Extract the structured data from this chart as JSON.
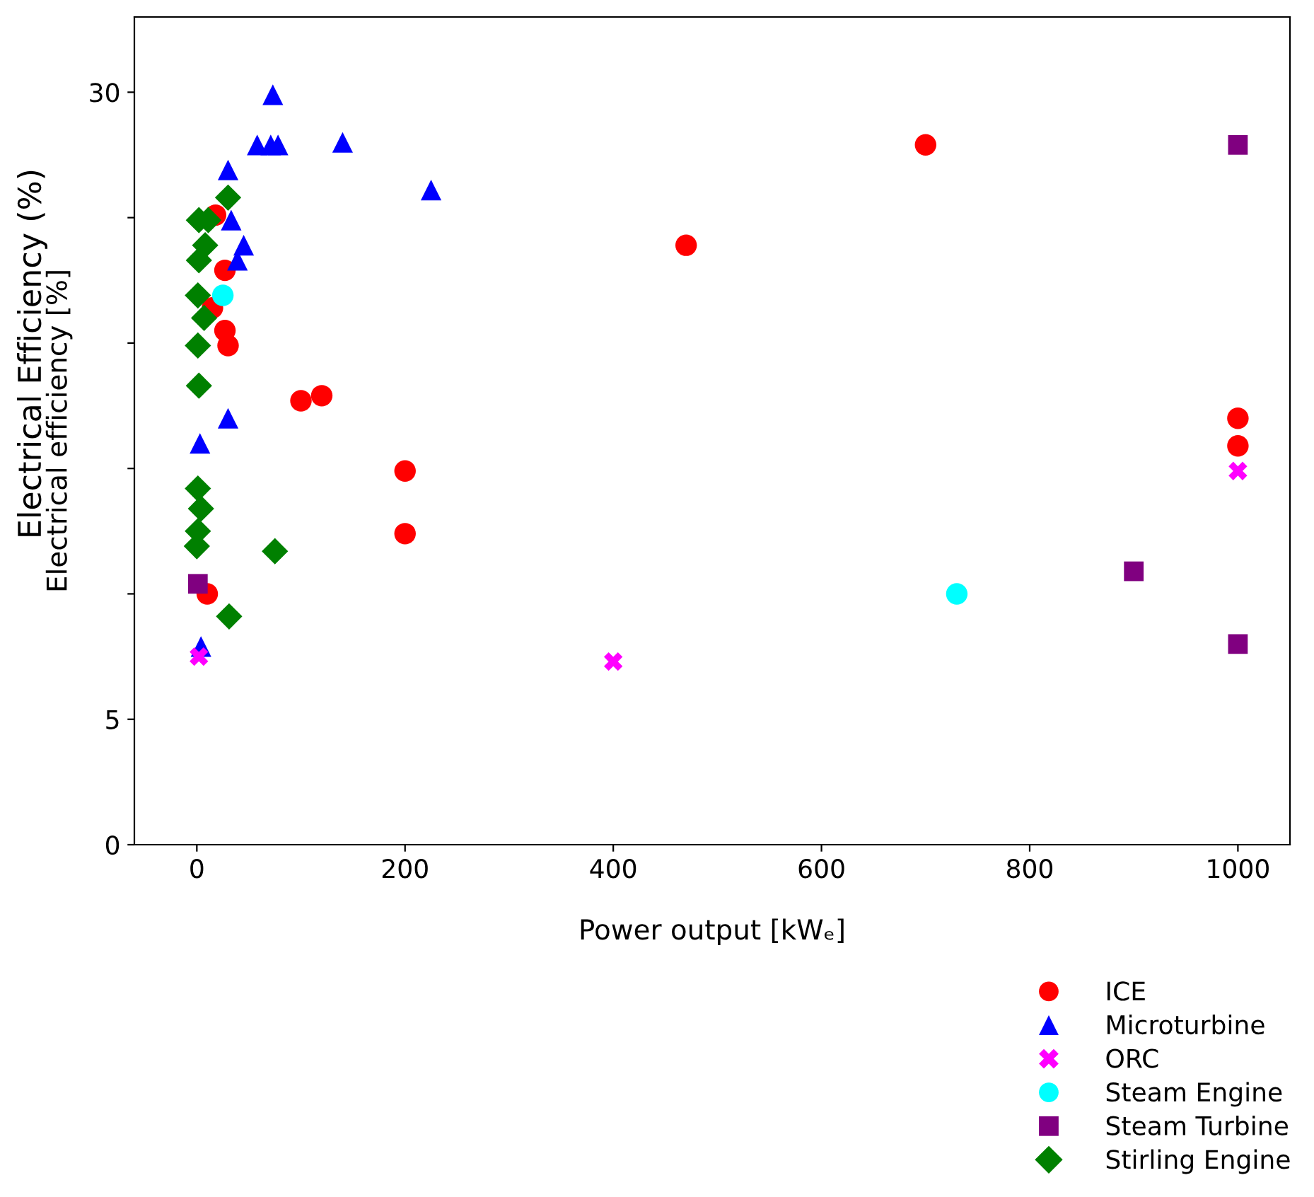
{
  "chart_data": {
    "type": "scatter",
    "xlabel": "Power output [kWₑ]",
    "ylabel": "Electrical efficiency [%]",
    "annotations": [
      "Electrical Efficiency (%)"
    ],
    "xlim": [
      -60,
      1050
    ],
    "xticks": [
      0,
      200,
      400,
      600,
      800,
      1000
    ],
    "ylim": [
      0,
      33
    ],
    "yticks": [
      0,
      5,
      {
        "value": 10,
        "label": null
      },
      {
        "value": 15,
        "label": null
      },
      {
        "value": 20,
        "label": null
      },
      {
        "value": 25,
        "label": null
      },
      30
    ],
    "grid": false,
    "legend": "bottom right",
    "series": [
      {
        "name": "ICE",
        "color": "#ff0000",
        "marker": "circle",
        "x": [
          18,
          27,
          15,
          27,
          30,
          100,
          120,
          200,
          200,
          10,
          700,
          470,
          1000,
          1000
        ],
        "values": [
          25.1,
          22.9,
          21.4,
          20.5,
          19.9,
          17.7,
          17.9,
          14.9,
          12.4,
          10.0,
          27.9,
          23.9,
          17.0,
          15.9
        ]
      },
      {
        "name": "Microturbine",
        "color": "#0000ff",
        "marker": "triangle",
        "x": [
          73,
          58,
          71,
          78,
          140,
          30,
          225,
          33,
          45,
          39,
          30,
          3,
          4
        ],
        "values": [
          29.9,
          27.9,
          27.9,
          27.9,
          28.0,
          26.9,
          26.1,
          24.9,
          23.9,
          23.3,
          17.0,
          16.0,
          7.9
        ]
      },
      {
        "name": "ORC",
        "color": "#ff00ff",
        "marker": "cross",
        "x": [
          2,
          400,
          1000
        ],
        "values": [
          7.5,
          7.3,
          14.9
        ]
      },
      {
        "name": "Steam Engine",
        "color": "#00ffff",
        "marker": "circle",
        "x": [
          25,
          730
        ],
        "values": [
          21.9,
          10.0
        ]
      },
      {
        "name": "Steam Turbine",
        "color": "#800080",
        "marker": "square",
        "x": [
          1,
          1000,
          900,
          1000
        ],
        "values": [
          10.4,
          27.9,
          10.9,
          8.0
        ]
      },
      {
        "name": "Stirling Engine",
        "color": "#008000",
        "marker": "diamond",
        "x": [
          2,
          11,
          30,
          8,
          2,
          1,
          7,
          1,
          2,
          1,
          4,
          1,
          0,
          75,
          31
        ],
        "values": [
          24.9,
          24.9,
          25.8,
          23.9,
          23.3,
          21.9,
          21.0,
          19.9,
          18.3,
          14.2,
          13.4,
          12.5,
          11.9,
          11.7,
          9.1
        ]
      }
    ]
  }
}
